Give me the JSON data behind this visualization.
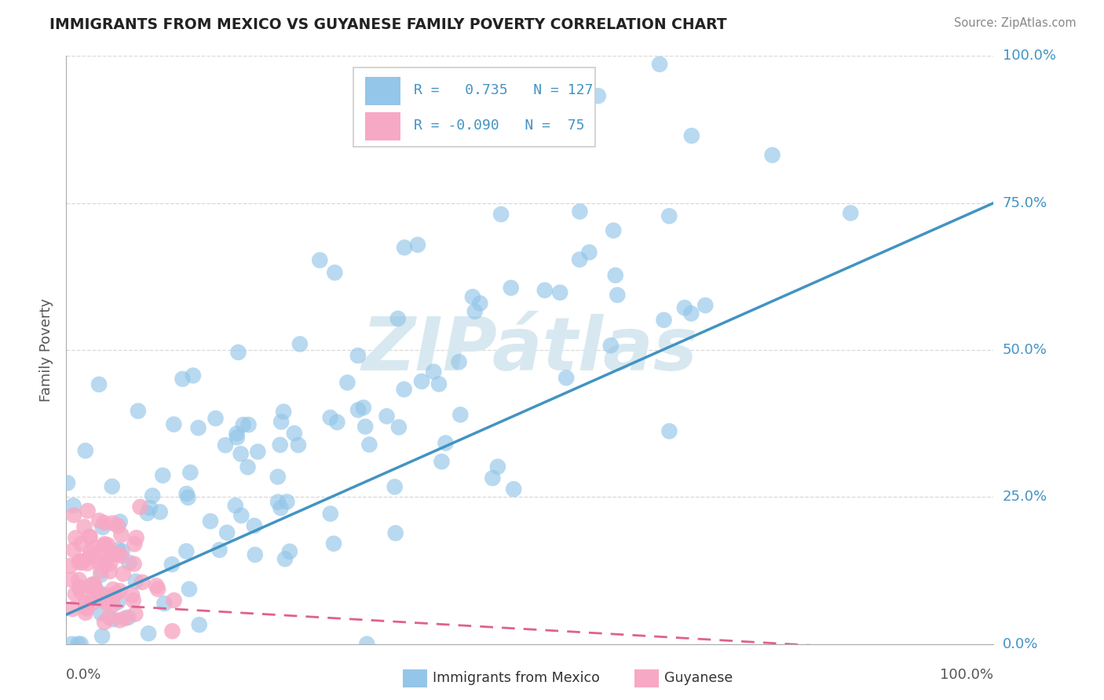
{
  "title": "IMMIGRANTS FROM MEXICO VS GUYANESE FAMILY POVERTY CORRELATION CHART",
  "source": "Source: ZipAtlas.com",
  "ylabel": "Family Poverty",
  "ytick_labels": [
    "0.0%",
    "25.0%",
    "50.0%",
    "75.0%",
    "100.0%"
  ],
  "ytick_values": [
    0.0,
    0.25,
    0.5,
    0.75,
    1.0
  ],
  "xtick_labels": [
    "0.0%",
    "100.0%"
  ],
  "xtick_values": [
    0.0,
    1.0
  ],
  "legend_label1": "Immigrants from Mexico",
  "legend_label2": "Guyanese",
  "R1": 0.735,
  "N1": 127,
  "R2": -0.09,
  "N2": 75,
  "blue_scatter_color": "#93C6E8",
  "blue_scatter_edge": "none",
  "pink_scatter_color": "#F7A8C4",
  "pink_scatter_edge": "none",
  "blue_line_color": "#4393C3",
  "pink_line_color": "#E06090",
  "blue_line_y0": 0.05,
  "blue_line_y1": 0.75,
  "pink_line_y0": 0.07,
  "pink_line_y1": -0.02,
  "watermark_text": "ZIPátlas",
  "watermark_color": "#d8e8f0",
  "background_color": "#ffffff",
  "grid_color": "#d0d0d0",
  "title_color": "#222222",
  "source_color": "#888888",
  "axis_label_color": "#4393C3",
  "ylabel_color": "#555555"
}
